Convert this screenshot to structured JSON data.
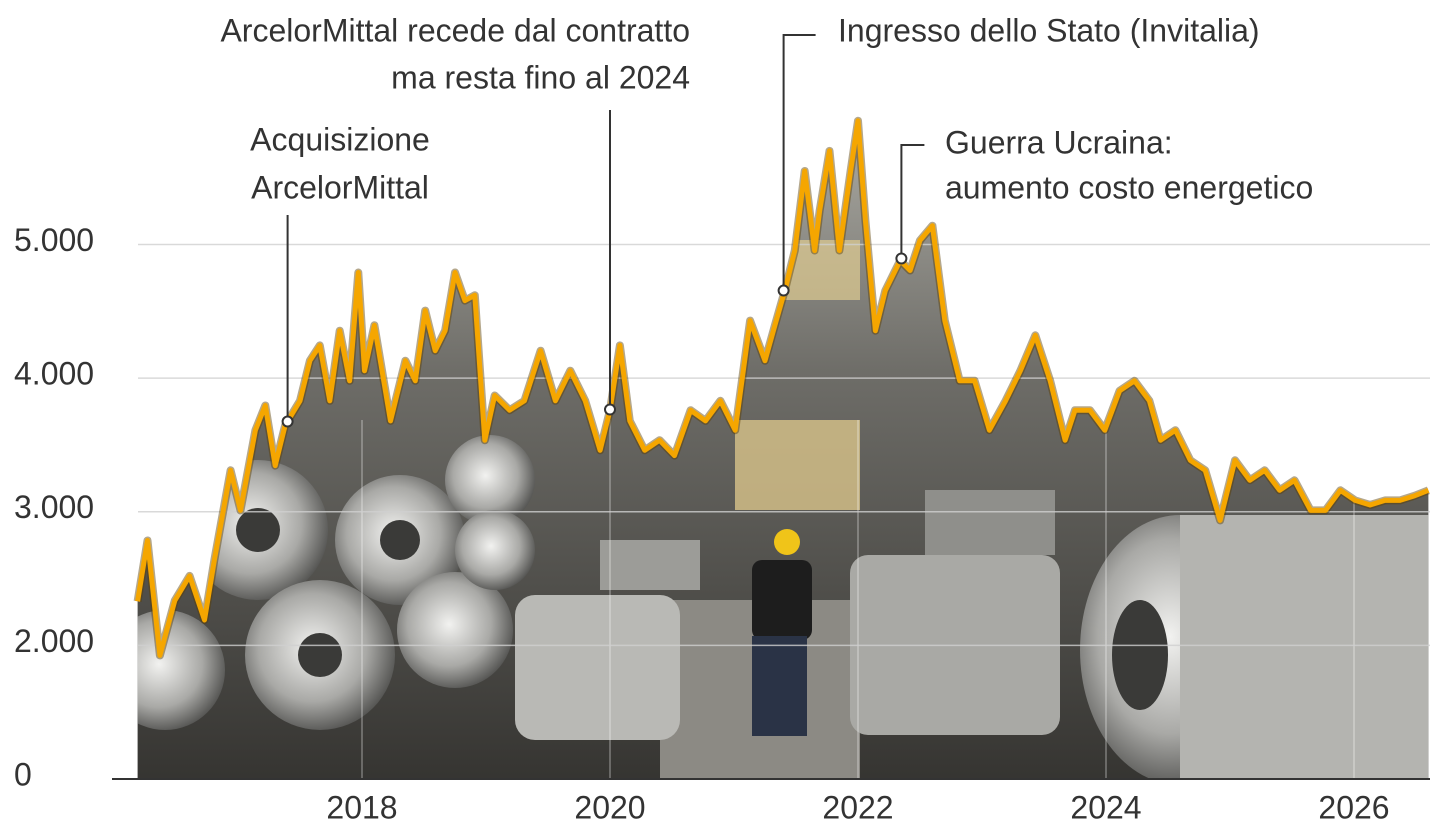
{
  "chart_data": {
    "type": "line",
    "x": [
      2016.19,
      2016.27,
      2016.37,
      2016.49,
      2016.61,
      2016.73,
      2016.81,
      2016.94,
      2017.02,
      2017.14,
      2017.22,
      2017.3,
      2017.38,
      2017.5,
      2017.58,
      2017.66,
      2017.74,
      2017.82,
      2017.9,
      2017.97,
      2018.02,
      2018.1,
      2018.23,
      2018.35,
      2018.43,
      2018.51,
      2018.59,
      2018.67,
      2018.75,
      2018.83,
      2018.91,
      2018.99,
      2019.07,
      2019.19,
      2019.31,
      2019.44,
      2019.56,
      2019.68,
      2019.8,
      2019.92,
      2020.0,
      2020.08,
      2020.16,
      2020.28,
      2020.4,
      2020.52,
      2020.65,
      2020.77,
      2020.89,
      2021.01,
      2021.13,
      2021.25,
      2021.33,
      2021.41,
      2021.49,
      2021.57,
      2021.65,
      2021.69,
      2021.77,
      2021.85,
      2021.94,
      2022.0,
      2022.06,
      2022.14,
      2022.22,
      2022.34,
      2022.42,
      2022.5,
      2022.6,
      2022.7,
      2022.82,
      2022.94,
      2023.06,
      2023.19,
      2023.31,
      2023.43,
      2023.55,
      2023.67,
      2023.75,
      2023.87,
      2023.99,
      2024.11,
      2024.23,
      2024.35,
      2024.44,
      2024.56,
      2024.68,
      2024.8,
      2024.92,
      2025.04,
      2025.16,
      2025.28,
      2025.4,
      2025.52,
      2025.65,
      2025.77,
      2025.89,
      2026.01,
      2026.13,
      2026.25,
      2026.37,
      2026.49,
      2026.6
    ],
    "values": [
      2330,
      2785,
      1925,
      2335,
      2520,
      2190,
      2640,
      3310,
      3010,
      3610,
      3795,
      3345,
      3645,
      3830,
      4130,
      4245,
      3830,
      4355,
      3980,
      4790,
      4055,
      4395,
      3680,
      4130,
      3980,
      4505,
      4205,
      4355,
      4790,
      4580,
      4620,
      3535,
      3870,
      3760,
      3830,
      4205,
      3830,
      4055,
      3830,
      3460,
      3760,
      4245,
      3680,
      3460,
      3535,
      3420,
      3760,
      3680,
      3830,
      3610,
      4430,
      4130,
      4395,
      4655,
      4955,
      5550,
      4955,
      5250,
      5700,
      4955,
      5550,
      5925,
      5180,
      4355,
      4655,
      4880,
      4805,
      5030,
      5140,
      4430,
      3980,
      3980,
      3610,
      3830,
      4055,
      4320,
      3980,
      3535,
      3760,
      3760,
      3610,
      3905,
      3980,
      3830,
      3535,
      3610,
      3385,
      3310,
      2935,
      3385,
      3235,
      3310,
      3160,
      3235,
      3010,
      3010,
      3160,
      3085,
      3050,
      3085,
      3085,
      3120,
      3160
    ],
    "color": "#f5a600",
    "xlim": [
      2016.1,
      2026.6
    ],
    "xticks": [
      2018,
      2020,
      2022,
      2024,
      2026
    ],
    "ylim": [
      1000,
      6500
    ],
    "y_axis_break": true,
    "yticks": [
      0,
      {
        "value": 2000,
        "label": "2.000"
      },
      {
        "value": 3000,
        "label": "3.000"
      },
      {
        "value": 4000,
        "label": "4.000"
      },
      {
        "value": 5000,
        "label": "5.000"
      }
    ],
    "grid": true,
    "annotations": [
      {
        "text": [
          "Acquisizione",
          "ArcelorMittal"
        ],
        "x": 2017.4,
        "y": 3675
      },
      {
        "text": [
          "ArcelorMittal recede dal contratto",
          "ma resta fino al 2024"
        ],
        "x": 2020.0,
        "y": 3765
      },
      {
        "text": [
          "Ingresso dello Stato (Invitalia)"
        ],
        "x": 2021.4,
        "y": 4655
      },
      {
        "text": [
          "Guerra Ucraina:",
          "aumento costo energetico"
        ],
        "x": 2022.35,
        "y": 4895
      }
    ]
  }
}
